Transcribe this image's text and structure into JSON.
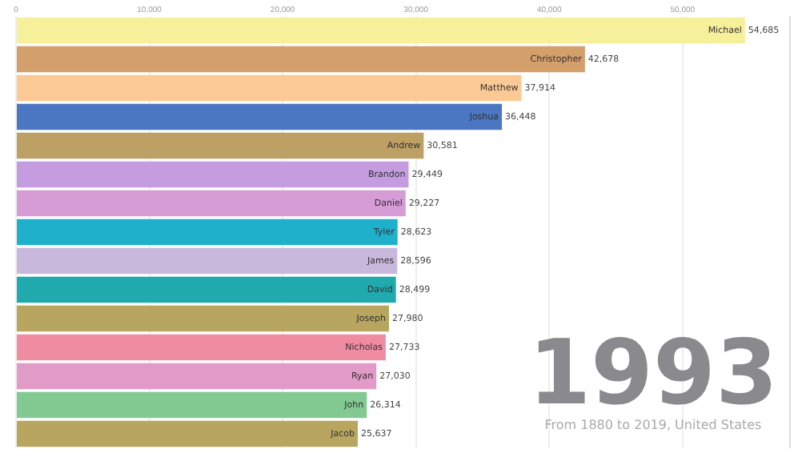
{
  "chart_data": {
    "type": "bar",
    "orientation": "horizontal",
    "categories": [
      "Michael",
      "Christopher",
      "Matthew",
      "Joshua",
      "Andrew",
      "Brandon",
      "Daniel",
      "Tyler",
      "James",
      "David",
      "Joseph",
      "Nicholas",
      "Ryan",
      "John",
      "Jacob"
    ],
    "values": [
      54685,
      42678,
      37914,
      36448,
      30581,
      29449,
      29227,
      28623,
      28596,
      28499,
      27980,
      27733,
      27030,
      26314,
      25637
    ],
    "colors": [
      "#f7f09a",
      "#d3a06c",
      "#fbc994",
      "#4a76c2",
      "#bda064",
      "#c59ce0",
      "#d59cd6",
      "#1fb0cc",
      "#c8b8dc",
      "#20aaae",
      "#b8a660",
      "#f08ca2",
      "#e29ac8",
      "#82c992",
      "#b8a660"
    ],
    "value_labels": [
      "54,685",
      "42,678",
      "37,914",
      "36,448",
      "30,581",
      "29,449",
      "29,227",
      "28,623",
      "28,596",
      "28,499",
      "27,980",
      "27,733",
      "27,030",
      "26,314",
      "25,637"
    ],
    "xlim": [
      0,
      58000
    ],
    "xticks": [
      {
        "value": 0,
        "label": "0"
      },
      {
        "value": 10000,
        "label": "10,000"
      },
      {
        "value": 20000,
        "label": "20,000"
      },
      {
        "value": 30000,
        "label": "30,000"
      },
      {
        "value": 40000,
        "label": "40,000"
      },
      {
        "value": 50000,
        "label": "50,000"
      }
    ],
    "grid": "x",
    "legend": false,
    "annotations": [
      "1993",
      "From 1880 to 2019, United States"
    ]
  }
}
